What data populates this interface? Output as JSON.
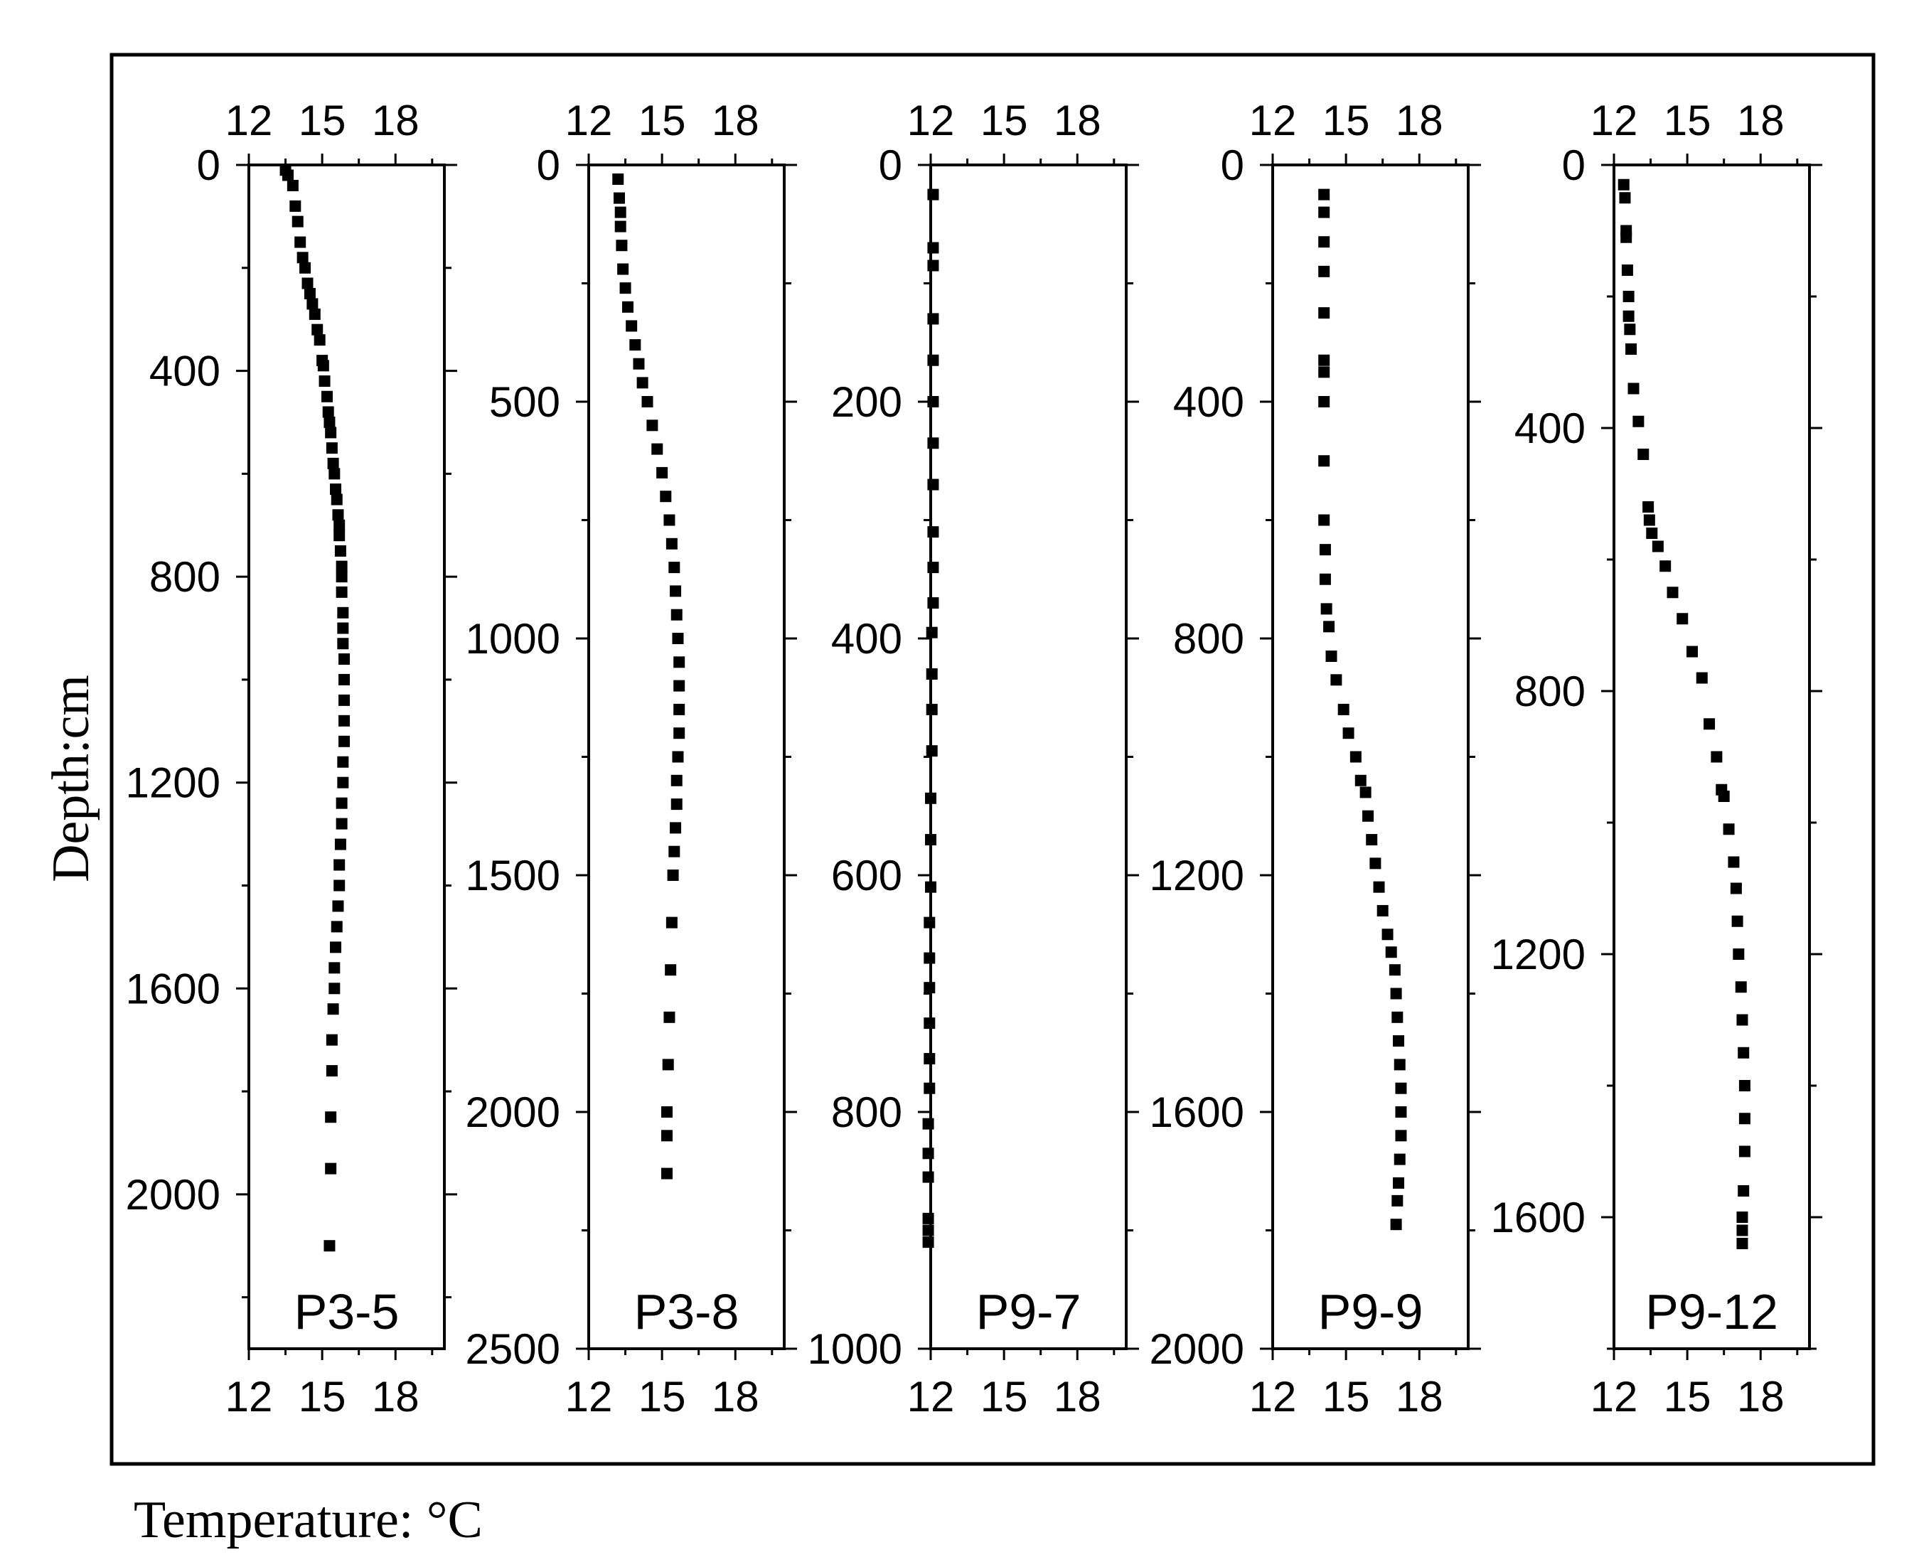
{
  "figure": {
    "ylabel": "Depth:cm",
    "xlabel": "Temperature: °C"
  },
  "chart_data": [
    {
      "type": "scatter",
      "panel_label": "P3-5",
      "xlim": [
        12,
        20
      ],
      "xticks": [
        12,
        15,
        18
      ],
      "ylim": [
        0,
        2300
      ],
      "yticks": [
        0,
        400,
        800,
        1200,
        1600,
        2000
      ],
      "y_inverted": true,
      "grid": false,
      "marker": "square",
      "x": [
        13.5,
        13.6,
        13.8,
        13.9,
        14.0,
        14.1,
        14.2,
        14.3,
        14.4,
        14.5,
        14.6,
        14.7,
        14.8,
        14.9,
        15.0,
        15.05,
        15.1,
        15.2,
        15.25,
        15.3,
        15.35,
        15.4,
        15.45,
        15.5,
        15.55,
        15.6,
        15.65,
        15.7,
        15.7,
        15.75,
        15.8,
        15.8,
        15.8,
        15.85,
        15.85,
        15.85,
        15.9,
        15.9,
        15.9,
        15.9,
        15.9,
        15.85,
        15.85,
        15.8,
        15.8,
        15.75,
        15.7,
        15.7,
        15.65,
        15.6,
        15.55,
        15.5,
        15.5,
        15.45,
        15.4,
        15.4,
        15.35,
        15.35,
        15.3
      ],
      "y": [
        10,
        20,
        40,
        80,
        110,
        150,
        180,
        200,
        230,
        250,
        270,
        290,
        320,
        340,
        380,
        390,
        420,
        450,
        480,
        500,
        520,
        550,
        580,
        600,
        630,
        650,
        680,
        700,
        720,
        750,
        780,
        800,
        830,
        870,
        900,
        930,
        960,
        1000,
        1040,
        1080,
        1120,
        1160,
        1200,
        1240,
        1280,
        1320,
        1360,
        1400,
        1440,
        1480,
        1520,
        1560,
        1600,
        1640,
        1700,
        1760,
        1850,
        1950,
        2100
      ]
    },
    {
      "type": "scatter",
      "panel_label": "P3-8",
      "xlim": [
        12,
        20
      ],
      "xticks": [
        12,
        15,
        18
      ],
      "ylim": [
        0,
        2500
      ],
      "yticks": [
        0,
        500,
        1000,
        1500,
        2000,
        2500
      ],
      "y_inverted": true,
      "grid": false,
      "marker": "square",
      "x": [
        13.2,
        13.25,
        13.3,
        13.3,
        13.35,
        13.4,
        13.5,
        13.6,
        13.75,
        13.9,
        14.05,
        14.2,
        14.4,
        14.6,
        14.8,
        15.0,
        15.15,
        15.3,
        15.4,
        15.5,
        15.55,
        15.6,
        15.65,
        15.7,
        15.7,
        15.7,
        15.7,
        15.65,
        15.6,
        15.6,
        15.55,
        15.5,
        15.45,
        15.4,
        15.35,
        15.3,
        15.25,
        15.2,
        15.2,
        15.2
      ],
      "y": [
        30,
        70,
        100,
        130,
        170,
        220,
        260,
        300,
        340,
        380,
        420,
        460,
        500,
        550,
        600,
        650,
        700,
        750,
        800,
        850,
        900,
        950,
        1000,
        1050,
        1100,
        1150,
        1200,
        1250,
        1300,
        1350,
        1400,
        1450,
        1500,
        1600,
        1700,
        1800,
        1900,
        2000,
        2050,
        2130
      ]
    },
    {
      "type": "scatter",
      "panel_label": "P9-7",
      "xlim": [
        12,
        20
      ],
      "xticks": [
        12,
        15,
        18
      ],
      "ylim": [
        0,
        1000
      ],
      "yticks": [
        0,
        200,
        400,
        600,
        800,
        1000
      ],
      "y_inverted": true,
      "grid": false,
      "marker": "square",
      "x": [
        12.1,
        12.1,
        12.1,
        12.1,
        12.1,
        12.1,
        12.1,
        12.1,
        12.1,
        12.1,
        12.1,
        12.05,
        12.05,
        12.05,
        12.05,
        12.0,
        12.0,
        12.0,
        11.95,
        11.95,
        11.95,
        11.95,
        11.95,
        11.95,
        11.9,
        11.9,
        11.9,
        11.9,
        11.9,
        11.9
      ],
      "y": [
        25,
        70,
        85,
        130,
        165,
        200,
        235,
        270,
        310,
        340,
        370,
        395,
        430,
        460,
        495,
        535,
        570,
        610,
        640,
        670,
        695,
        725,
        755,
        780,
        810,
        835,
        855,
        890,
        900,
        910
      ]
    },
    {
      "type": "scatter",
      "panel_label": "P9-9",
      "xlim": [
        12,
        20
      ],
      "xticks": [
        12,
        15,
        18
      ],
      "ylim": [
        0,
        2000
      ],
      "yticks": [
        0,
        400,
        800,
        1200,
        1600,
        2000
      ],
      "y_inverted": true,
      "grid": false,
      "marker": "square",
      "x": [
        14.1,
        14.1,
        14.1,
        14.1,
        14.1,
        14.1,
        14.1,
        14.1,
        14.1,
        14.1,
        14.15,
        14.15,
        14.2,
        14.3,
        14.4,
        14.6,
        14.9,
        15.1,
        15.4,
        15.6,
        15.8,
        15.9,
        16.05,
        16.2,
        16.35,
        16.5,
        16.7,
        16.85,
        17.0,
        17.05,
        17.1,
        17.15,
        17.2,
        17.25,
        17.25,
        17.25,
        17.2,
        17.15,
        17.1,
        17.05
      ],
      "y": [
        50,
        80,
        130,
        180,
        250,
        330,
        350,
        400,
        500,
        600,
        650,
        700,
        750,
        780,
        830,
        870,
        920,
        960,
        1000,
        1040,
        1060,
        1100,
        1140,
        1180,
        1220,
        1260,
        1300,
        1330,
        1360,
        1400,
        1440,
        1480,
        1520,
        1560,
        1600,
        1640,
        1680,
        1720,
        1750,
        1790
      ]
    },
    {
      "type": "scatter",
      "panel_label": "P9-12",
      "xlim": [
        12,
        20
      ],
      "xticks": [
        12,
        15,
        18
      ],
      "ylim": [
        0,
        1800
      ],
      "yticks": [
        0,
        400,
        800,
        1200,
        1600
      ],
      "y_inverted": true,
      "grid": false,
      "marker": "square",
      "x": [
        12.4,
        12.45,
        12.5,
        12.5,
        12.55,
        12.6,
        12.6,
        12.65,
        12.7,
        12.8,
        13.0,
        13.2,
        13.4,
        13.45,
        13.55,
        13.8,
        14.1,
        14.4,
        14.8,
        15.2,
        15.6,
        15.9,
        16.2,
        16.4,
        16.5,
        16.7,
        16.9,
        17.0,
        17.05,
        17.1,
        17.2,
        17.25,
        17.3,
        17.35,
        17.35,
        17.35,
        17.3,
        17.25,
        17.25,
        17.25
      ],
      "y": [
        30,
        50,
        100,
        110,
        160,
        200,
        230,
        250,
        280,
        340,
        390,
        440,
        520,
        540,
        560,
        580,
        610,
        650,
        690,
        740,
        780,
        850,
        900,
        950,
        960,
        1010,
        1060,
        1100,
        1150,
        1200,
        1250,
        1300,
        1350,
        1400,
        1450,
        1500,
        1560,
        1600,
        1620,
        1640
      ]
    }
  ]
}
